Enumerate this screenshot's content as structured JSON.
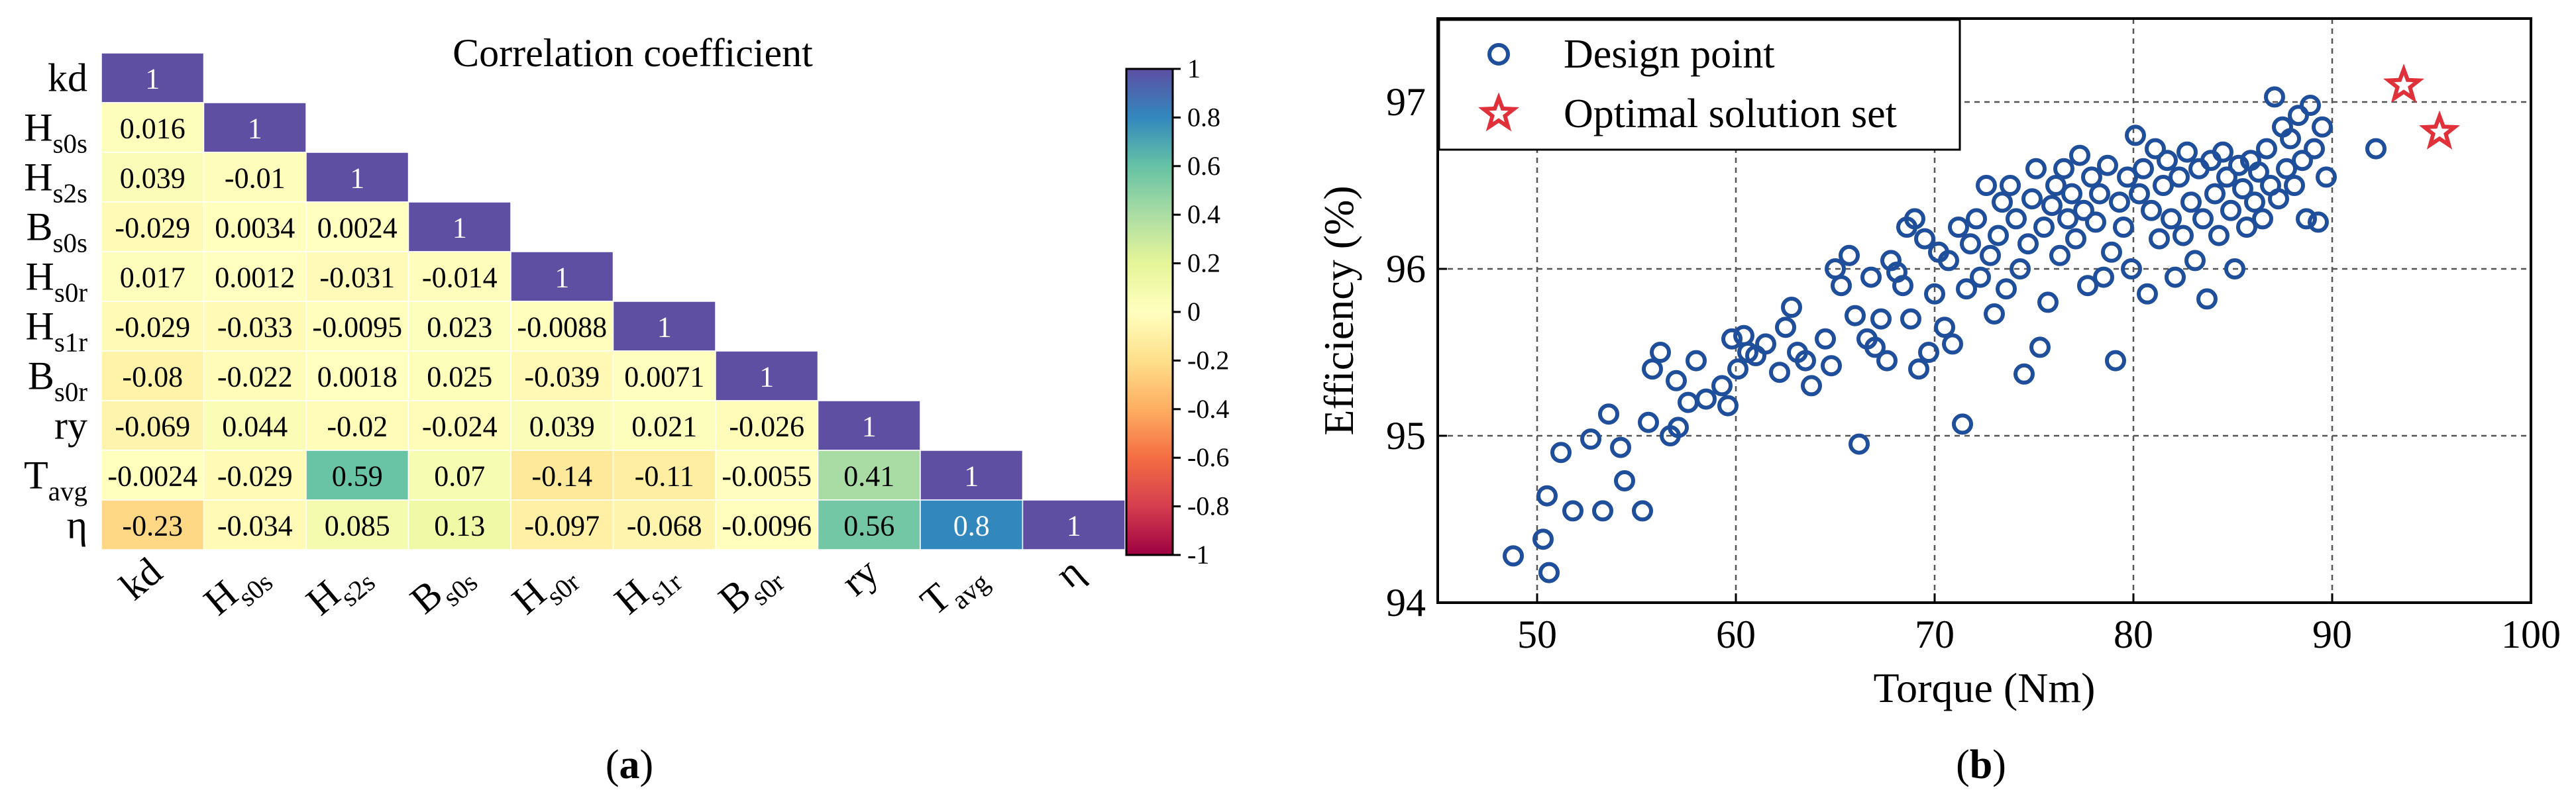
{
  "chart_data": [
    {
      "type": "heatmap",
      "title": "Correlation coefficient",
      "panel_label": "a",
      "variables": [
        {
          "base": "kd",
          "sub": ""
        },
        {
          "base": "H",
          "sub": "s0s"
        },
        {
          "base": "H",
          "sub": "s2s"
        },
        {
          "base": "B",
          "sub": "s0s"
        },
        {
          "base": "H",
          "sub": "s0r"
        },
        {
          "base": "H",
          "sub": "s1r"
        },
        {
          "base": "B",
          "sub": "s0r"
        },
        {
          "base": "ry",
          "sub": ""
        },
        {
          "base": "T",
          "sub": "avg"
        },
        {
          "base": "η",
          "sub": ""
        }
      ],
      "matrix": [
        [
          "1"
        ],
        [
          "0.016",
          "1"
        ],
        [
          "0.039",
          "-0.01",
          "1"
        ],
        [
          "-0.029",
          "0.0034",
          "0.0024",
          "1"
        ],
        [
          "0.017",
          "0.0012",
          "-0.031",
          "-0.014",
          "1"
        ],
        [
          "-0.029",
          "-0.033",
          "-0.0095",
          "0.023",
          "-0.0088",
          "1"
        ],
        [
          "-0.08",
          "-0.022",
          "0.0018",
          "0.025",
          "-0.039",
          "0.0071",
          "1"
        ],
        [
          "-0.069",
          "0.044",
          "-0.02",
          "-0.024",
          "0.039",
          "0.021",
          "-0.026",
          "1"
        ],
        [
          "-0.0024",
          "-0.029",
          "0.59",
          "0.07",
          "-0.14",
          "-0.11",
          "-0.0055",
          "0.41",
          "1"
        ],
        [
          "-0.23",
          "-0.034",
          "0.085",
          "0.13",
          "-0.097",
          "-0.068",
          "-0.0096",
          "0.56",
          "0.8",
          "1"
        ]
      ],
      "colorbar": {
        "range": [
          -1,
          1
        ],
        "ticks": [
          "1",
          "0.8",
          "0.6",
          "0.4",
          "0.2",
          "0",
          "-0.2",
          "-0.4",
          "-0.6",
          "-0.8",
          "-1"
        ],
        "colormap": [
          "#5e4fa2",
          "#3288bd",
          "#66c2a5",
          "#abdda4",
          "#e6f598",
          "#ffffbf",
          "#fee08b",
          "#fdae61",
          "#f46d43",
          "#d53e4f",
          "#9e0142"
        ]
      }
    },
    {
      "type": "scatter",
      "panel_label": "b",
      "xlabel": "Torque (Nm)",
      "ylabel": "Efficiency (%)",
      "xlim": [
        45,
        100
      ],
      "ylim": [
        94,
        97.5
      ],
      "xticks": [
        50,
        60,
        70,
        80,
        90,
        100
      ],
      "yticks": [
        94,
        95,
        96,
        97
      ],
      "grid": true,
      "legend_position": "top-left",
      "series": [
        {
          "name": "Design point",
          "marker": "circle",
          "color": "#1f4e9a",
          "points": [
            [
              48.8,
              94.28
            ],
            [
              50.3,
              94.38
            ],
            [
              50.5,
              94.64
            ],
            [
              50.6,
              94.18
            ],
            [
              51.2,
              94.9
            ],
            [
              51.8,
              94.55
            ],
            [
              52.7,
              94.98
            ],
            [
              53.3,
              94.55
            ],
            [
              53.6,
              95.13
            ],
            [
              54.2,
              94.93
            ],
            [
              54.4,
              94.73
            ],
            [
              55.3,
              94.55
            ],
            [
              55.6,
              95.08
            ],
            [
              55.8,
              95.4
            ],
            [
              56.2,
              95.5
            ],
            [
              56.7,
              95.0
            ],
            [
              57.0,
              95.33
            ],
            [
              57.1,
              95.05
            ],
            [
              57.6,
              95.2
            ],
            [
              58.0,
              95.45
            ],
            [
              58.5,
              95.22
            ],
            [
              59.3,
              95.3
            ],
            [
              59.6,
              95.18
            ],
            [
              59.8,
              95.58
            ],
            [
              60.1,
              95.4
            ],
            [
              60.4,
              95.6
            ],
            [
              60.6,
              95.5
            ],
            [
              61.0,
              95.48
            ],
            [
              61.5,
              95.55
            ],
            [
              62.2,
              95.38
            ],
            [
              62.5,
              95.65
            ],
            [
              62.8,
              95.77
            ],
            [
              63.1,
              95.5
            ],
            [
              63.5,
              95.45
            ],
            [
              63.8,
              95.3
            ],
            [
              64.5,
              95.58
            ],
            [
              64.8,
              95.42
            ],
            [
              65.0,
              96.0
            ],
            [
              65.3,
              95.9
            ],
            [
              65.7,
              96.08
            ],
            [
              66.0,
              95.72
            ],
            [
              66.2,
              94.95
            ],
            [
              66.6,
              95.58
            ],
            [
              66.8,
              95.95
            ],
            [
              67.0,
              95.53
            ],
            [
              67.3,
              95.7
            ],
            [
              67.6,
              95.45
            ],
            [
              67.8,
              96.05
            ],
            [
              68.1,
              95.98
            ],
            [
              68.4,
              95.9
            ],
            [
              68.6,
              96.25
            ],
            [
              68.8,
              95.7
            ],
            [
              69.0,
              96.3
            ],
            [
              69.2,
              95.4
            ],
            [
              69.5,
              96.18
            ],
            [
              69.7,
              95.5
            ],
            [
              70.0,
              95.85
            ],
            [
              70.2,
              96.1
            ],
            [
              70.5,
              95.65
            ],
            [
              70.7,
              96.05
            ],
            [
              70.9,
              95.55
            ],
            [
              71.2,
              96.25
            ],
            [
              71.4,
              95.07
            ],
            [
              71.6,
              95.88
            ],
            [
              71.8,
              96.15
            ],
            [
              72.1,
              96.3
            ],
            [
              72.3,
              95.95
            ],
            [
              72.6,
              96.5
            ],
            [
              72.8,
              96.08
            ],
            [
              73.0,
              95.73
            ],
            [
              73.2,
              96.2
            ],
            [
              73.4,
              96.4
            ],
            [
              73.6,
              95.88
            ],
            [
              73.8,
              96.5
            ],
            [
              74.1,
              96.3
            ],
            [
              74.3,
              96.0
            ],
            [
              74.5,
              95.37
            ],
            [
              74.7,
              96.15
            ],
            [
              74.9,
              96.42
            ],
            [
              75.1,
              96.6
            ],
            [
              75.3,
              95.53
            ],
            [
              75.5,
              96.25
            ],
            [
              75.7,
              95.8
            ],
            [
              75.9,
              96.38
            ],
            [
              76.1,
              96.5
            ],
            [
              76.3,
              96.08
            ],
            [
              76.5,
              96.6
            ],
            [
              76.7,
              96.3
            ],
            [
              76.9,
              96.45
            ],
            [
              77.1,
              96.18
            ],
            [
              77.3,
              96.68
            ],
            [
              77.5,
              96.35
            ],
            [
              77.7,
              95.9
            ],
            [
              77.9,
              96.55
            ],
            [
              78.1,
              96.28
            ],
            [
              78.3,
              96.45
            ],
            [
              78.5,
              95.95
            ],
            [
              78.7,
              96.62
            ],
            [
              78.9,
              96.1
            ],
            [
              79.1,
              95.45
            ],
            [
              79.3,
              96.4
            ],
            [
              79.5,
              96.25
            ],
            [
              79.7,
              96.55
            ],
            [
              79.9,
              96.0
            ],
            [
              80.1,
              96.8
            ],
            [
              80.3,
              96.45
            ],
            [
              80.5,
              96.6
            ],
            [
              80.7,
              95.85
            ],
            [
              80.9,
              96.35
            ],
            [
              81.1,
              96.72
            ],
            [
              81.3,
              96.18
            ],
            [
              81.5,
              96.5
            ],
            [
              81.7,
              96.65
            ],
            [
              81.9,
              96.3
            ],
            [
              82.1,
              95.95
            ],
            [
              82.3,
              96.55
            ],
            [
              82.5,
              96.2
            ],
            [
              82.7,
              96.7
            ],
            [
              82.9,
              96.4
            ],
            [
              83.1,
              96.05
            ],
            [
              83.3,
              96.6
            ],
            [
              83.5,
              96.3
            ],
            [
              83.7,
              95.82
            ],
            [
              83.9,
              96.65
            ],
            [
              84.1,
              96.45
            ],
            [
              84.3,
              96.2
            ],
            [
              84.5,
              96.7
            ],
            [
              84.7,
              96.55
            ],
            [
              84.9,
              96.35
            ],
            [
              85.1,
              96.0
            ],
            [
              85.3,
              96.62
            ],
            [
              85.5,
              96.48
            ],
            [
              85.7,
              96.25
            ],
            [
              85.9,
              96.65
            ],
            [
              86.1,
              96.4
            ],
            [
              86.3,
              96.58
            ],
            [
              86.5,
              96.3
            ],
            [
              86.7,
              96.72
            ],
            [
              86.9,
              96.5
            ],
            [
              87.1,
              97.03
            ],
            [
              87.3,
              96.42
            ],
            [
              87.5,
              96.85
            ],
            [
              87.7,
              96.6
            ],
            [
              87.9,
              96.78
            ],
            [
              88.1,
              96.5
            ],
            [
              88.3,
              96.92
            ],
            [
              88.5,
              96.65
            ],
            [
              88.7,
              96.3
            ],
            [
              88.9,
              96.98
            ],
            [
              89.1,
              96.72
            ],
            [
              89.3,
              96.28
            ],
            [
              89.5,
              96.85
            ],
            [
              89.7,
              96.55
            ],
            [
              92.2,
              96.72
            ]
          ]
        },
        {
          "name": "Optimal solution set",
          "marker": "star",
          "color": "#e0303a",
          "points": [
            [
              93.6,
              97.1
            ],
            [
              95.4,
              96.82
            ]
          ]
        }
      ]
    }
  ]
}
